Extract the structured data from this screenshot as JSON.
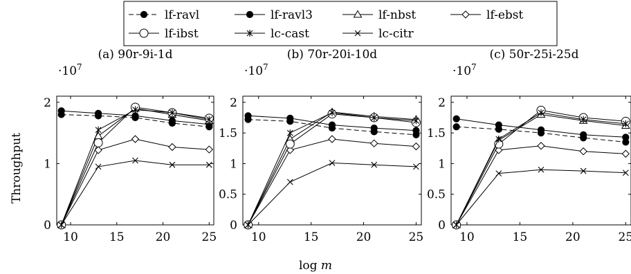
{
  "chart_data": {
    "type": "line",
    "legend": {
      "placement": "top-center",
      "entries": [
        "lf-ravl",
        "lf-ravl3",
        "lf-nbst",
        "lf-ebst",
        "lf-ibst",
        "lc-cast",
        "lc-citr"
      ]
    },
    "xlabel": "log m",
    "ylabel": "Throughput",
    "y_scale_label": "·10^7",
    "subplots": [
      {
        "title": "(a) 90r-9i-1d",
        "x": [
          9,
          13,
          17,
          21,
          25
        ],
        "xlim": [
          8.5,
          25.5
        ],
        "ylim": [
          0,
          2.1
        ],
        "xticks": [
          "10",
          "15",
          "20",
          "25"
        ],
        "yticks": [
          "0",
          "1",
          "2"
        ],
        "series": [
          {
            "name": "lf-ravl",
            "values": [
              1.8,
              1.78,
              1.75,
              1.66,
              1.6
            ]
          },
          {
            "name": "lf-ravl3",
            "values": [
              1.86,
              1.82,
              1.78,
              1.7,
              1.64
            ]
          },
          {
            "name": "lf-nbst",
            "values": [
              0.0,
              1.45,
              1.9,
              1.8,
              1.7
            ]
          },
          {
            "name": "lf-ebst",
            "values": [
              0.0,
              1.22,
              1.4,
              1.27,
              1.23
            ]
          },
          {
            "name": "lf-ibst",
            "values": [
              0.0,
              1.34,
              1.92,
              1.83,
              1.74
            ]
          },
          {
            "name": "lc-cast",
            "values": [
              0.0,
              1.55,
              1.88,
              1.83,
              1.72
            ]
          },
          {
            "name": "lc-citr",
            "values": [
              0.0,
              0.95,
              1.05,
              0.98,
              0.98
            ]
          }
        ]
      },
      {
        "title": "(b) 70r-20i-10d",
        "x": [
          9,
          13,
          17,
          21,
          25
        ],
        "xlim": [
          8.5,
          25.5
        ],
        "ylim": [
          0,
          2.1
        ],
        "xticks": [
          "10",
          "15",
          "20",
          "25"
        ],
        "yticks": [
          "0",
          "0.5",
          "1",
          "1.5",
          "2"
        ],
        "series": [
          {
            "name": "lf-ravl",
            "values": [
              1.72,
              1.69,
              1.58,
              1.52,
              1.47
            ]
          },
          {
            "name": "lf-ravl3",
            "values": [
              1.78,
              1.74,
              1.63,
              1.58,
              1.54
            ]
          },
          {
            "name": "lf-nbst",
            "values": [
              0.0,
              1.4,
              1.84,
              1.77,
              1.72
            ]
          },
          {
            "name": "lf-ebst",
            "values": [
              0.0,
              1.22,
              1.4,
              1.33,
              1.28
            ]
          },
          {
            "name": "lf-ibst",
            "values": [
              0.0,
              1.32,
              1.81,
              1.75,
              1.67
            ]
          },
          {
            "name": "lc-cast",
            "values": [
              0.0,
              1.5,
              1.83,
              1.75,
              1.7
            ]
          },
          {
            "name": "lc-citr",
            "values": [
              0.0,
              0.7,
              1.01,
              0.98,
              0.95
            ]
          }
        ]
      },
      {
        "title": "(c) 50r-25i-25d",
        "x": [
          9,
          13,
          17,
          21,
          25
        ],
        "xlim": [
          8.5,
          25.5
        ],
        "ylim": [
          0,
          2.1
        ],
        "xticks": [
          "10",
          "15",
          "20",
          "25"
        ],
        "yticks": [
          "0",
          "0.5",
          "1",
          "1.5",
          "2"
        ],
        "series": [
          {
            "name": "lf-ravl",
            "values": [
              1.6,
              1.56,
              1.5,
              1.42,
              1.35
            ]
          },
          {
            "name": "lf-ravl3",
            "values": [
              1.73,
              1.63,
              1.55,
              1.47,
              1.43
            ]
          },
          {
            "name": "lf-nbst",
            "values": [
              0.0,
              1.38,
              1.8,
              1.7,
              1.62
            ]
          },
          {
            "name": "lf-ebst",
            "values": [
              0.0,
              1.22,
              1.29,
              1.2,
              1.16
            ]
          },
          {
            "name": "lf-ibst",
            "values": [
              0.0,
              1.32,
              1.87,
              1.75,
              1.69
            ]
          },
          {
            "name": "lc-cast",
            "values": [
              0.0,
              1.4,
              1.83,
              1.72,
              1.65
            ]
          },
          {
            "name": "lc-citr",
            "values": [
              0.0,
              0.84,
              0.9,
              0.88,
              0.85
            ]
          }
        ]
      }
    ]
  }
}
